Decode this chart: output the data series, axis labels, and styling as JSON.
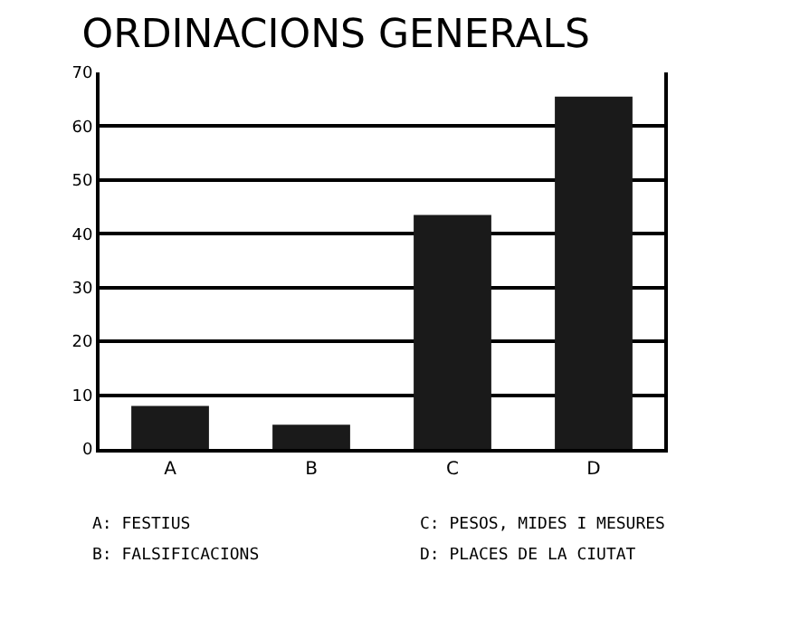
{
  "chart_data": {
    "type": "bar",
    "title": "ORDINACIONS GENERALS",
    "categories": [
      "A",
      "B",
      "C",
      "D"
    ],
    "values": [
      8,
      4.5,
      43.5,
      65.5
    ],
    "color": "#1a1a1a",
    "ylim": [
      0,
      70
    ],
    "yticks": [
      0,
      10,
      20,
      30,
      40,
      50,
      60,
      70
    ],
    "grid": "y",
    "annotations": [
      "A: FESTIUS",
      "B: FALSIFICACIONS",
      "C: PESOS, MIDES I MESURES",
      "D: PLACES DE LA CIUTAT"
    ]
  }
}
